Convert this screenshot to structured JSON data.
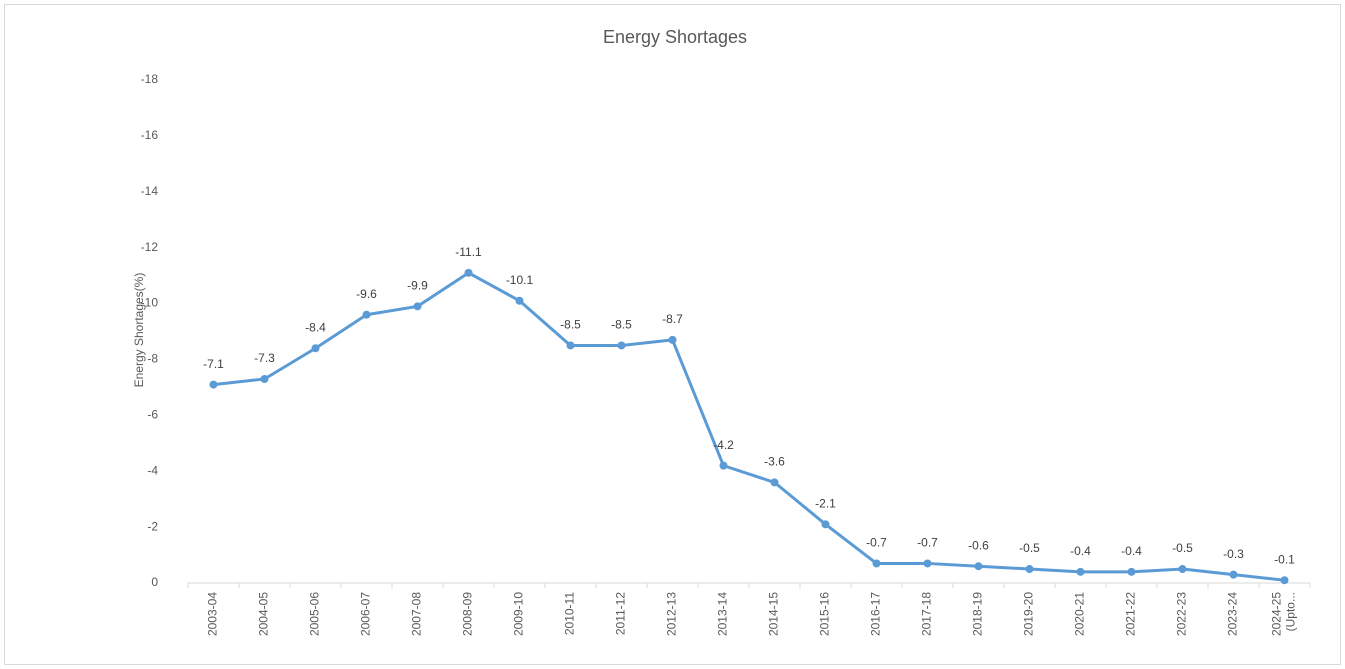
{
  "chart_data": {
    "type": "line",
    "title": "Energy Shortages",
    "y_label": "Energy Shortages(%)",
    "categories": [
      "2003-04",
      "2004-05",
      "2005-06",
      "2006-07",
      "2007-08",
      "2008-09",
      "2009-10",
      "2010-11",
      "2011-12",
      "2012-13",
      "2013-14",
      "2014-15",
      "2015-16",
      "2016-17",
      "2017-18",
      "2018-19",
      "2019-20",
      "2020-21",
      "2021-22",
      "2022-23",
      "2023-24",
      "2024-25 (Upto..."
    ],
    "values": [
      -7.1,
      -7.3,
      -8.4,
      -9.6,
      -9.9,
      -11.1,
      -10.1,
      -8.5,
      -8.5,
      -8.7,
      -4.2,
      -3.6,
      -2.1,
      -0.7,
      -0.7,
      -0.6,
      -0.5,
      -0.4,
      -0.4,
      -0.5,
      -0.3,
      -0.1
    ],
    "color": "#5b9bd5",
    "ylim": [
      0,
      -18
    ],
    "yticks": [
      0,
      -2,
      -4,
      -6,
      -8,
      -10,
      -12,
      -14,
      -16,
      -18
    ],
    "grid": false
  }
}
